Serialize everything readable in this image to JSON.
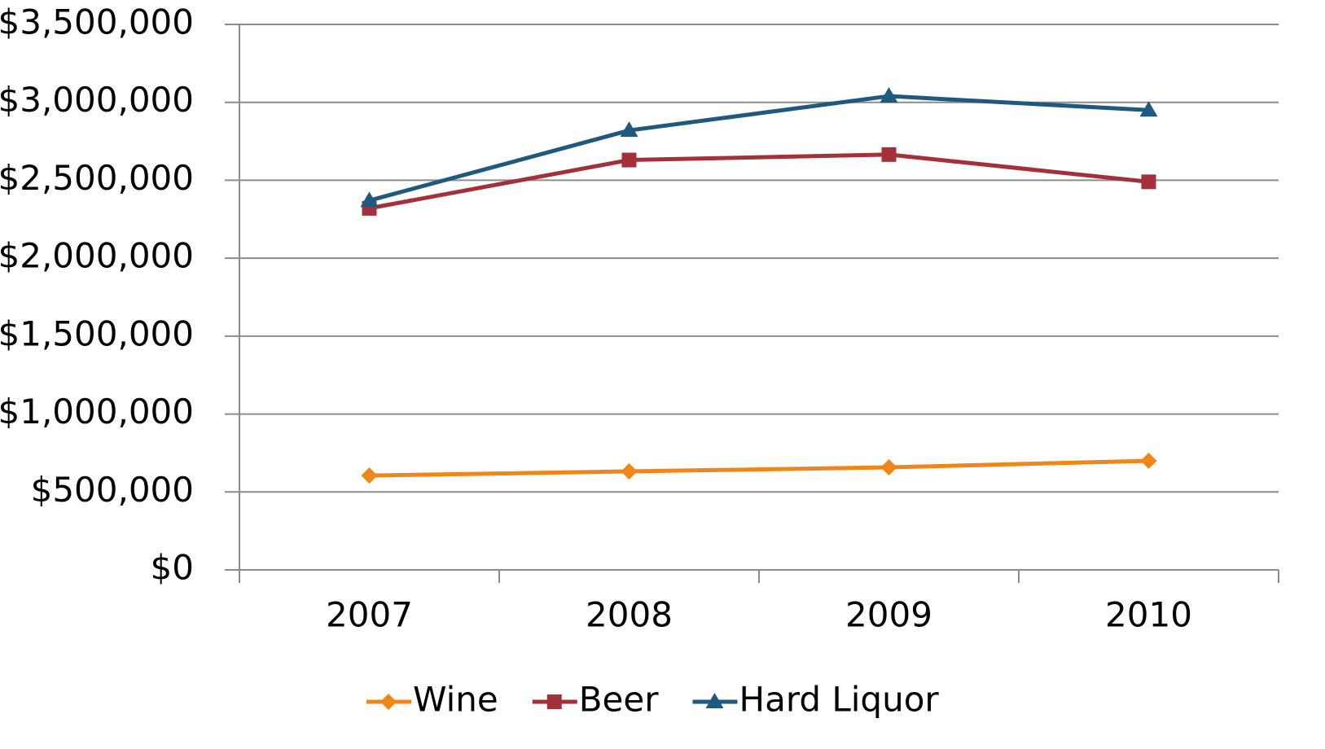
{
  "chart_data": {
    "type": "line",
    "categories": [
      "2007",
      "2008",
      "2009",
      "2010"
    ],
    "series": [
      {
        "name": "Wine",
        "color": "#f0861a",
        "marker": "diamond",
        "values": [
          605000,
          632000,
          658000,
          700000
        ]
      },
      {
        "name": "Beer",
        "color": "#a4303a",
        "marker": "square",
        "values": [
          2320000,
          2630000,
          2665000,
          2490000
        ]
      },
      {
        "name": "Hard Liquor",
        "color": "#1f5a7e",
        "marker": "triangle",
        "values": [
          2370000,
          2820000,
          3040000,
          2950000
        ]
      }
    ],
    "ylim": [
      0,
      3500000
    ],
    "yticks": [
      {
        "value": 0,
        "label": "$0"
      },
      {
        "value": 500000,
        "label": "$500,000"
      },
      {
        "value": 1000000,
        "label": "$1,000,000"
      },
      {
        "value": 1500000,
        "label": "$1,500,000"
      },
      {
        "value": 2000000,
        "label": "$2,000,000"
      },
      {
        "value": 2500000,
        "label": "$2,500,000"
      },
      {
        "value": 3000000,
        "label": "$3,000,000"
      },
      {
        "value": 3500000,
        "label": "$3,500,000"
      }
    ],
    "grid": true,
    "legend": "bottom"
  }
}
